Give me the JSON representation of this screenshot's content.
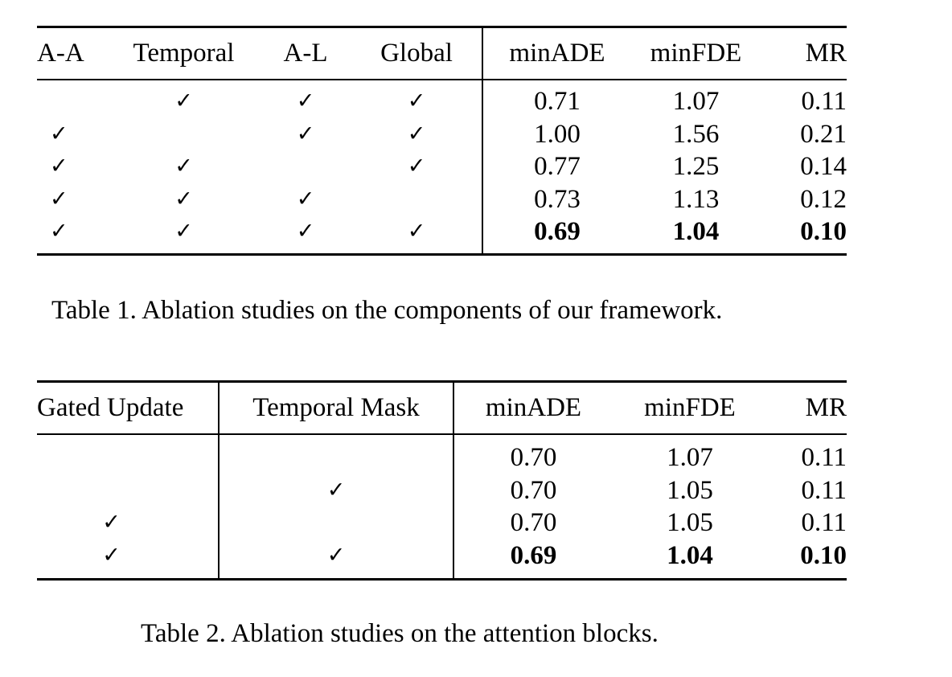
{
  "table1": {
    "headers": [
      "A-A",
      "Temporal",
      "A-L",
      "Global",
      "minADE",
      "minFDE",
      "MR"
    ],
    "check_symbol": "✓",
    "rows": [
      {
        "checks": [
          "",
          "✓",
          "✓",
          "✓"
        ],
        "minADE": "0.71",
        "minFDE": "1.07",
        "MR": "0.11"
      },
      {
        "checks": [
          "✓",
          "",
          "✓",
          "✓"
        ],
        "minADE": "1.00",
        "minFDE": "1.56",
        "MR": "0.21"
      },
      {
        "checks": [
          "✓",
          "✓",
          "",
          "✓"
        ],
        "minADE": "0.77",
        "minFDE": "1.25",
        "MR": "0.14"
      },
      {
        "checks": [
          "✓",
          "✓",
          "✓",
          ""
        ],
        "minADE": "0.73",
        "minFDE": "1.13",
        "MR": "0.12"
      },
      {
        "checks": [
          "✓",
          "✓",
          "✓",
          "✓"
        ],
        "minADE": "0.69",
        "minFDE": "1.04",
        "MR": "0.10"
      }
    ],
    "caption": "Table 1. Ablation studies on the components of our framework."
  },
  "table2": {
    "headers": [
      "Gated Update",
      "Temporal Mask",
      "minADE",
      "minFDE",
      "MR"
    ],
    "rows": [
      {
        "checks": [
          "",
          ""
        ],
        "minADE": "0.70",
        "minFDE": "1.07",
        "MR": "0.11"
      },
      {
        "checks": [
          "",
          "✓"
        ],
        "minADE": "0.70",
        "minFDE": "1.05",
        "MR": "0.11"
      },
      {
        "checks": [
          "✓",
          ""
        ],
        "minADE": "0.70",
        "minFDE": "1.05",
        "MR": "0.11"
      },
      {
        "checks": [
          "✓",
          "✓"
        ],
        "minADE": "0.69",
        "minFDE": "1.04",
        "MR": "0.10"
      }
    ],
    "caption": "Table 2. Ablation studies on the attention blocks."
  }
}
